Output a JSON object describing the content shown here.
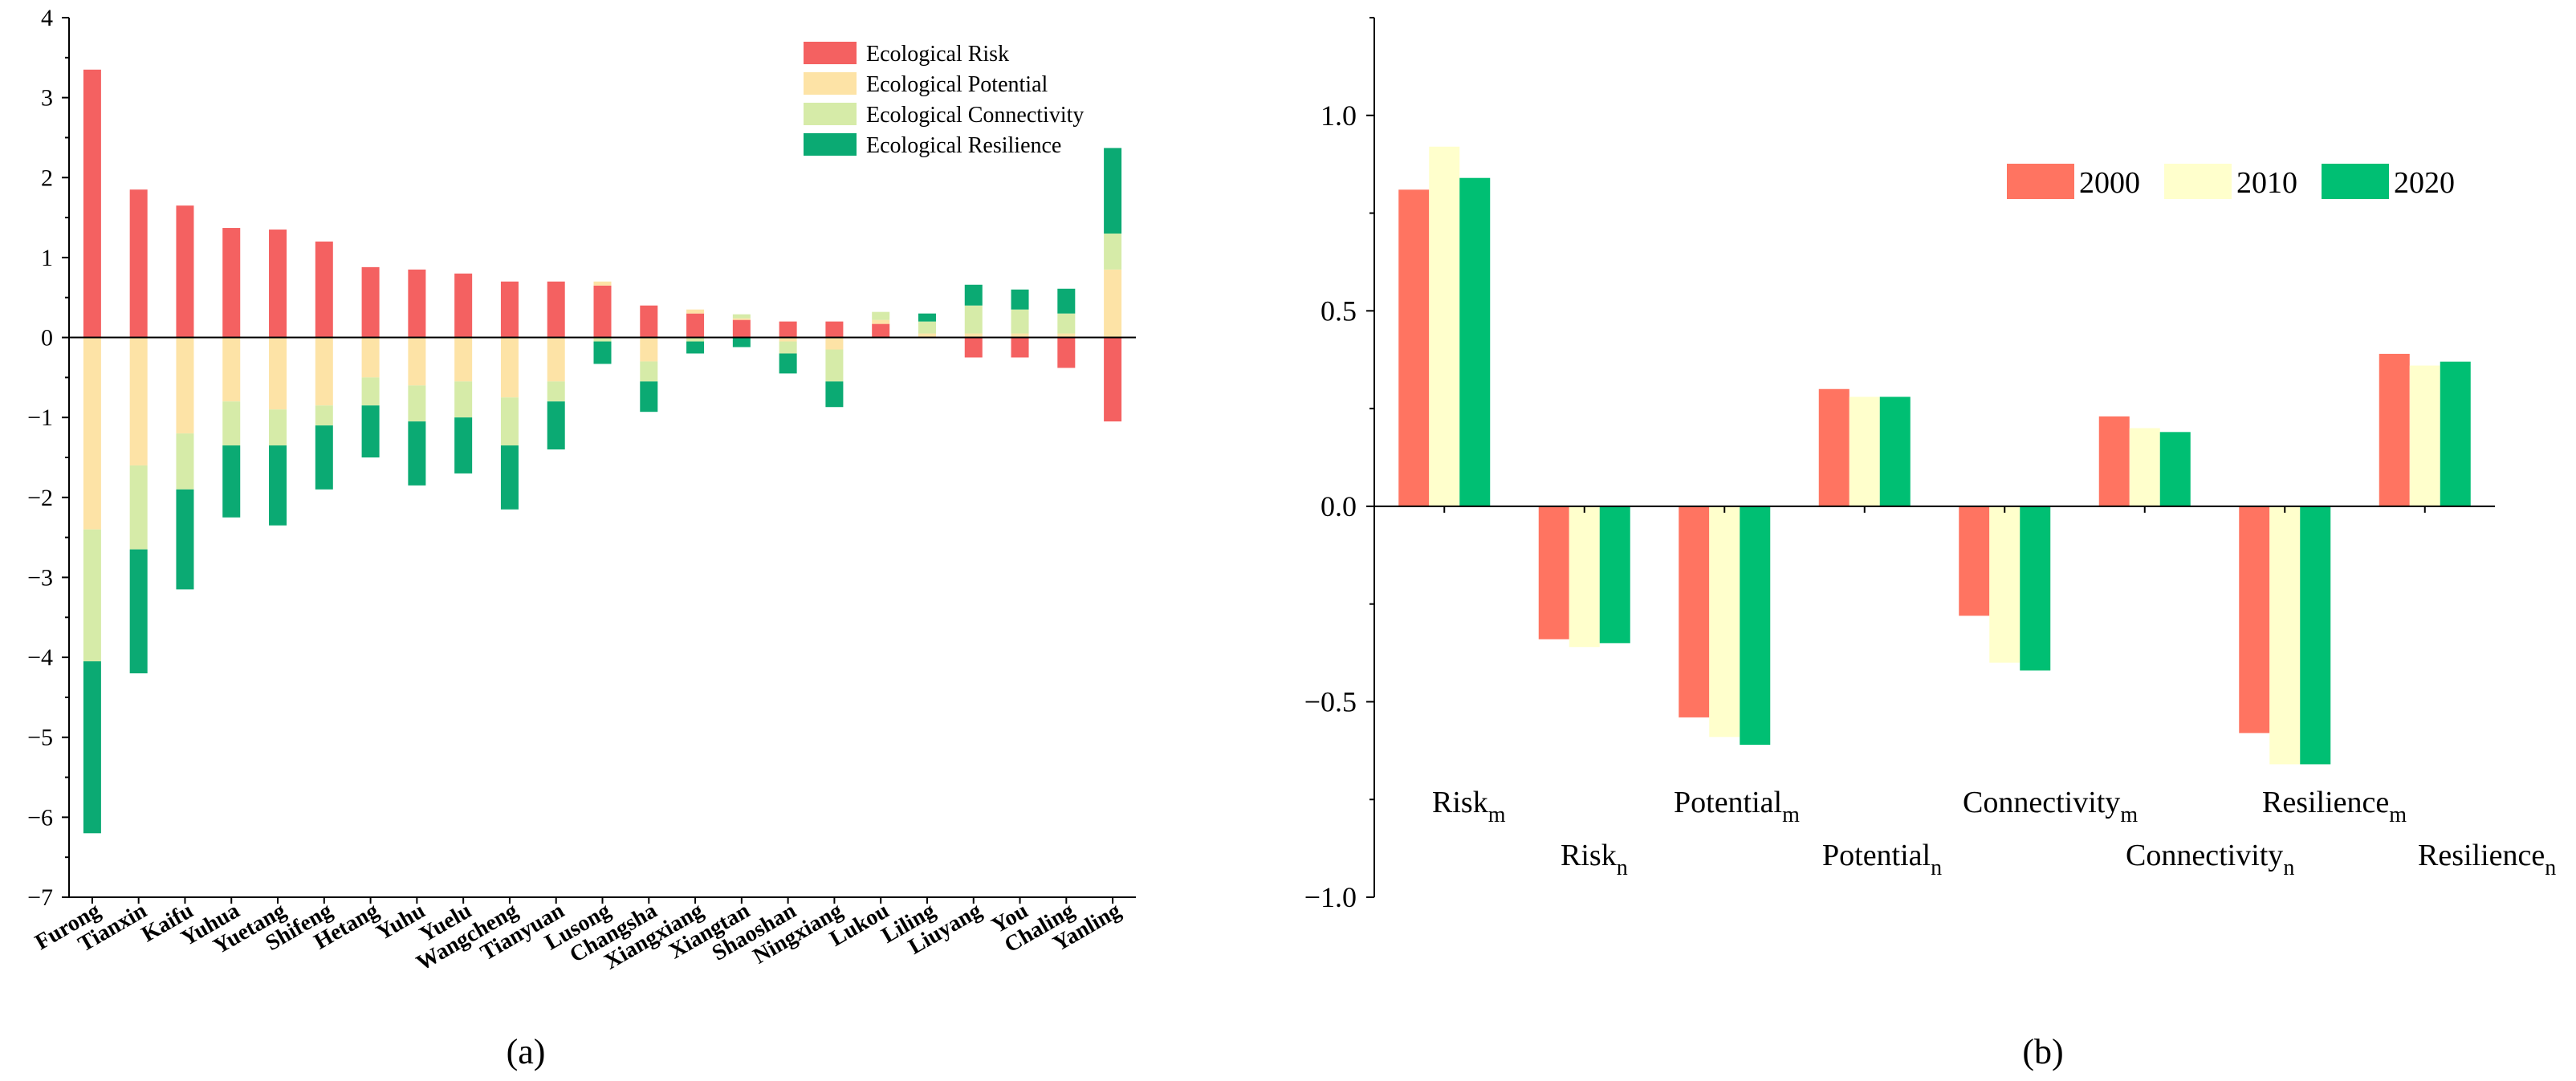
{
  "chart_data": [
    {
      "panel": "a",
      "panel_label": "(a)",
      "type": "bar",
      "stacked": true,
      "ylim": [
        -7,
        4
      ],
      "yticks": [
        "−7",
        "−6",
        "−5",
        "−4",
        "−3",
        "−2",
        "−1",
        "0",
        "1",
        "2",
        "3",
        "4"
      ],
      "legend_position": "top-right",
      "categories": [
        "Furong",
        "Tianxin",
        "Kaifu",
        "Yuhua",
        "Yuetang",
        "Shifeng",
        "Hetang",
        "Yuhu",
        "Yuelu",
        "Wangcheng",
        "Tianyuan",
        "Lusong",
        "Changsha",
        "Xiangxiang",
        "Xiangtan",
        "Shaoshan",
        "Ningxiang",
        "Lukou",
        "Liling",
        "Liuyang",
        "You",
        "Chaling",
        "Yanling"
      ],
      "series": [
        {
          "name": "Ecological Risk",
          "color": "#F46161",
          "values": [
            3.35,
            1.85,
            1.65,
            1.37,
            1.35,
            1.2,
            0.88,
            0.85,
            0.8,
            0.7,
            0.7,
            0.65,
            0.4,
            0.3,
            0.22,
            0.2,
            0.2,
            0.17,
            0.0,
            -0.25,
            -0.25,
            -0.38,
            -1.05
          ]
        },
        {
          "name": "Ecological Potential",
          "color": "#FDE3A6",
          "values": [
            -2.4,
            -1.6,
            -1.2,
            -0.8,
            -0.9,
            -0.85,
            -0.5,
            -0.6,
            -0.55,
            -0.75,
            -0.55,
            0.05,
            -0.3,
            0.05,
            0.02,
            -0.05,
            -0.15,
            0.05,
            0.05,
            0.05,
            0.05,
            0.05,
            0.85
          ]
        },
        {
          "name": "Ecological Connectivity",
          "color": "#D6EBA8",
          "values": [
            -1.65,
            -1.05,
            -0.7,
            -0.55,
            -0.45,
            -0.25,
            -0.35,
            -0.45,
            -0.45,
            -0.6,
            -0.25,
            -0.05,
            -0.25,
            -0.05,
            0.05,
            -0.15,
            -0.4,
            0.1,
            0.15,
            0.35,
            0.3,
            0.25,
            0.45
          ]
        },
        {
          "name": "Ecological Resilience",
          "color": "#0BAA73",
          "values": [
            -2.15,
            -1.55,
            -1.25,
            -0.9,
            -1.0,
            -0.8,
            -0.65,
            -0.8,
            -0.7,
            -0.8,
            -0.6,
            -0.28,
            -0.38,
            -0.15,
            -0.12,
            -0.25,
            -0.32,
            0.0,
            0.1,
            0.26,
            0.25,
            0.31,
            1.07
          ]
        }
      ]
    },
    {
      "panel": "b",
      "panel_label": "(b)",
      "type": "bar",
      "ylim": [
        -1.0,
        1.25
      ],
      "yticks": [
        "−1.0",
        "−0.5",
        "0.0",
        "0.5",
        "1.0"
      ],
      "legend_position": "top-right",
      "categories": [
        {
          "base": "Risk",
          "sub": "m"
        },
        {
          "base": "Risk",
          "sub": "n"
        },
        {
          "base": "Potential",
          "sub": "m"
        },
        {
          "base": "Potential",
          "sub": "n"
        },
        {
          "base": "Connectivity",
          "sub": "m"
        },
        {
          "base": "Connectivity",
          "sub": "n"
        },
        {
          "base": "Resilience",
          "sub": "m"
        },
        {
          "base": "Resilience",
          "sub": "n"
        }
      ],
      "series": [
        {
          "name": "2000",
          "color": "#FF7461",
          "values": [
            0.81,
            -0.34,
            -0.54,
            0.3,
            -0.28,
            0.23,
            -0.58,
            0.39
          ]
        },
        {
          "name": "2010",
          "color": "#FFFFCC",
          "values": [
            0.92,
            -0.36,
            -0.59,
            0.28,
            -0.4,
            0.2,
            -0.66,
            0.36
          ]
        },
        {
          "name": "2020",
          "color": "#00BF73",
          "values": [
            0.84,
            -0.35,
            -0.61,
            0.28,
            -0.42,
            0.19,
            -0.66,
            0.37
          ]
        }
      ]
    }
  ]
}
